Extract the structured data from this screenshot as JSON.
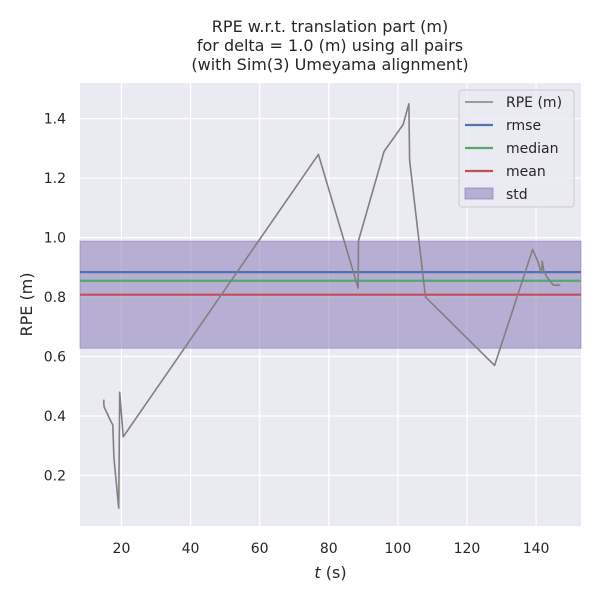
{
  "chart_data": {
    "type": "line",
    "title_lines": [
      "RPE w.r.t. translation part (m)",
      "for delta = 1.0 (m) using all pairs",
      "(with Sim(3) Umeyama alignment)"
    ],
    "xlabel_var": "t",
    "xlabel_unit": " (s)",
    "ylabel": "RPE (m)",
    "xlim": [
      8,
      153
    ],
    "ylim": [
      0.03,
      1.52
    ],
    "xticks": [
      20,
      40,
      60,
      80,
      100,
      120,
      140
    ],
    "yticks": [
      0.2,
      0.4,
      0.6,
      0.8,
      1.0,
      1.2,
      1.4
    ],
    "ytick_labels": [
      "0.2",
      "0.4",
      "0.6",
      "0.8",
      "1.0",
      "1.2",
      "1.4"
    ],
    "grid": true,
    "legend_position": "top-right",
    "series": [
      {
        "name": "RPE (m)",
        "color": "#808080",
        "x": [
          14.9,
          14.9,
          15.0,
          17.0,
          17.5,
          17.8,
          19.2,
          19.5,
          20.5,
          77.0,
          88.0,
          88.5,
          88.6,
          96.0,
          101.5,
          103.2,
          103.4,
          108.0,
          128.0,
          139.0,
          140.5,
          141.5,
          141.8,
          142.2,
          143.0,
          145.0,
          147.0
        ],
        "y": [
          0.455,
          0.44,
          0.43,
          0.38,
          0.37,
          0.26,
          0.09,
          0.48,
          0.33,
          1.28,
          0.85,
          0.83,
          0.99,
          1.29,
          1.38,
          1.45,
          1.26,
          0.8,
          0.57,
          0.96,
          0.92,
          0.88,
          0.92,
          0.89,
          0.87,
          0.84,
          0.84
        ]
      }
    ],
    "stats": [
      {
        "name": "rmse",
        "value": 0.884,
        "color": "#4c72b0"
      },
      {
        "name": "median",
        "value": 0.855,
        "color": "#55a868"
      },
      {
        "name": "mean",
        "value": 0.808,
        "color": "#c44e52"
      }
    ],
    "std": {
      "name": "std",
      "lower": 0.628,
      "upper": 0.988,
      "color": "#8172b3"
    },
    "colors": {
      "plot_background": "#eaeaf2",
      "grid": "#ffffff",
      "text": "#262626"
    }
  }
}
